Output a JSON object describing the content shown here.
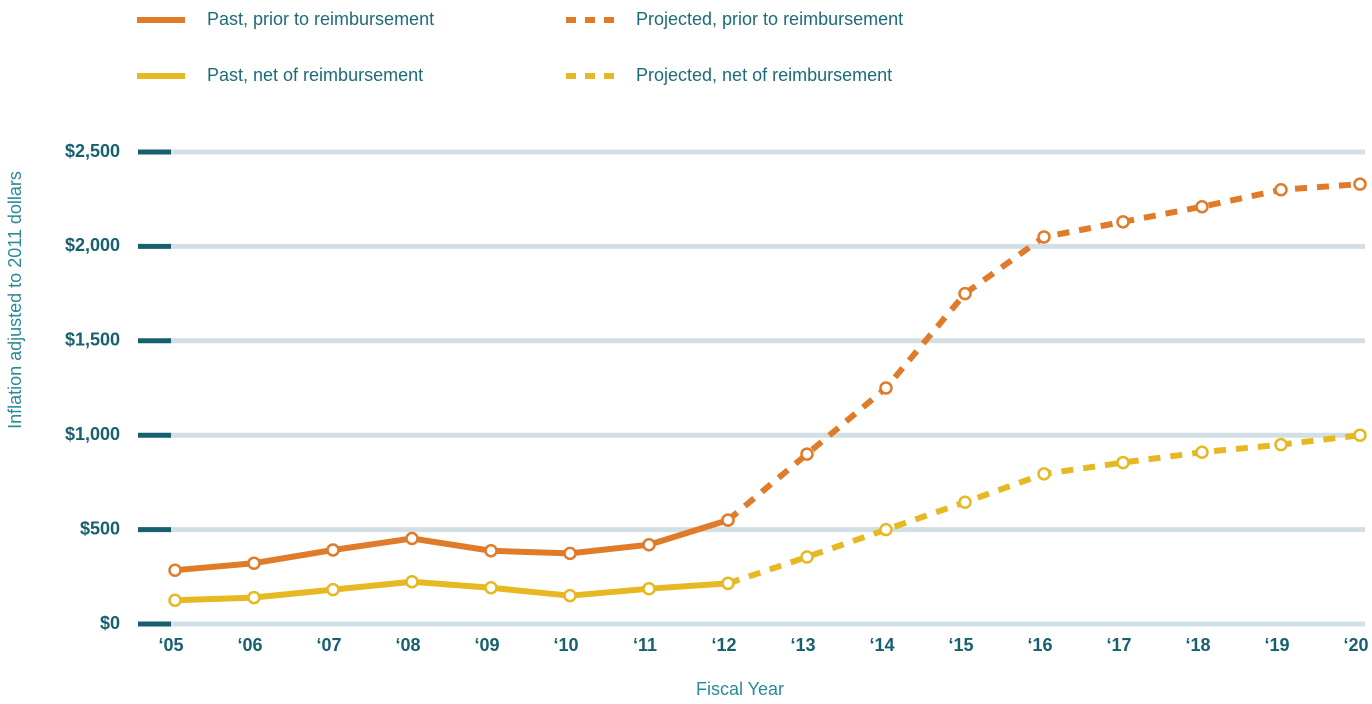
{
  "chart_data": {
    "type": "line",
    "y_label": "Inflation adjusted to 2011 dollars",
    "x_label": "Fiscal Year",
    "categories": [
      "‘05",
      "‘06",
      "‘07",
      "‘08",
      "‘09",
      "‘10",
      "‘11",
      "‘12",
      "‘13",
      "‘14",
      "‘15",
      "‘16",
      "‘17",
      "‘18",
      "‘19",
      "‘20"
    ],
    "series": [
      {
        "name": "Past, prior to reimbursement",
        "color": "#e07b2a",
        "dashed": false,
        "values": [
          285,
          322,
          392,
          453,
          388,
          374,
          420,
          550,
          null,
          null,
          null,
          null,
          null,
          null,
          null,
          null
        ]
      },
      {
        "name": "Projected, prior to reimbursement",
        "color": "#e07b2a",
        "dashed": true,
        "values": [
          null,
          null,
          null,
          null,
          null,
          null,
          null,
          550,
          900,
          1250,
          1750,
          2050,
          2130,
          2210,
          2300,
          2330
        ]
      },
      {
        "name": "Past, net of reimbursement",
        "color": "#e6b822",
        "dashed": false,
        "values": [
          126,
          140,
          182,
          224,
          192,
          150,
          187,
          215,
          null,
          null,
          null,
          null,
          null,
          null,
          null,
          null
        ]
      },
      {
        "name": "Projected, net of reimbursement",
        "color": "#e6b822",
        "dashed": true,
        "values": [
          null,
          null,
          null,
          null,
          null,
          null,
          null,
          215,
          355,
          500,
          645,
          795,
          855,
          910,
          950,
          1000
        ]
      }
    ],
    "ylim": [
      0,
      2500
    ],
    "yticks": [
      {
        "value": 0,
        "label": "$0"
      },
      {
        "value": 500,
        "label": "$500"
      },
      {
        "value": 1000,
        "label": "$1,000"
      },
      {
        "value": 1500,
        "label": "$1,500"
      },
      {
        "value": 2000,
        "label": "$2,000"
      },
      {
        "value": 2500,
        "label": "$2,500"
      }
    ],
    "grid": true
  }
}
